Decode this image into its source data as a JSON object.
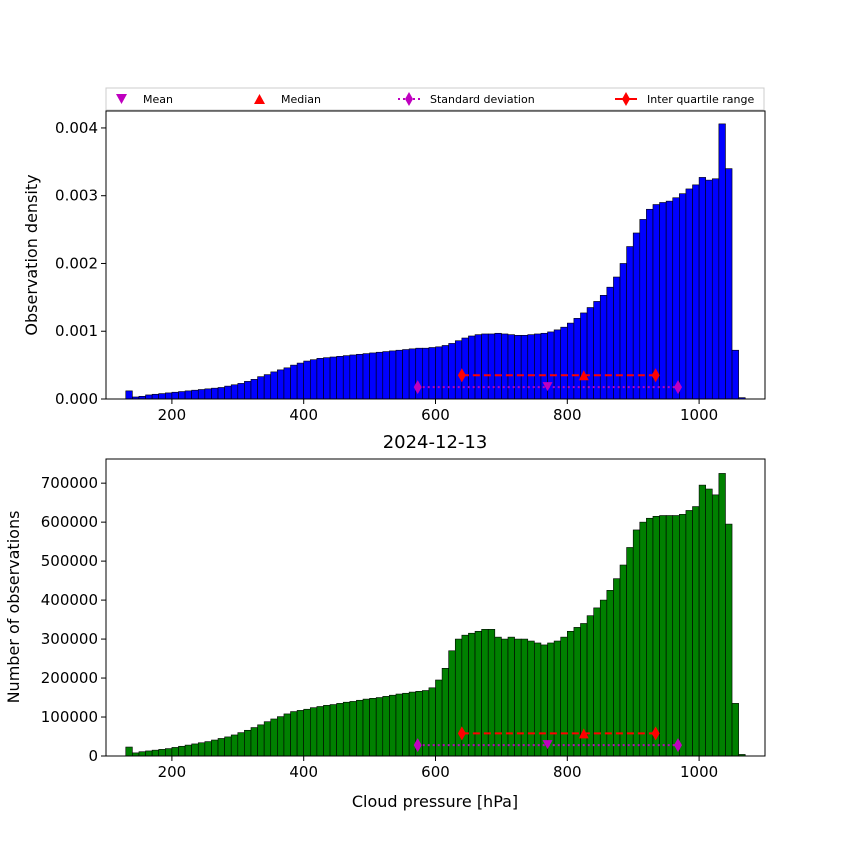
{
  "figure": {
    "title": "2024-12-13",
    "legend": {
      "placement": "top",
      "entries": [
        {
          "key": "mean",
          "label": "Mean",
          "marker": "triangle-down",
          "color": "#bf00bf"
        },
        {
          "key": "median",
          "label": "Median",
          "marker": "triangle-up",
          "color": "#ff0000"
        },
        {
          "key": "std",
          "label": "Standard deviation",
          "marker": "diamond",
          "line": "dotted",
          "color": "#bf00bf"
        },
        {
          "key": "iqr",
          "label": "Inter quartile range",
          "marker": "diamond",
          "line": "solid",
          "color": "#ff0000"
        }
      ]
    }
  },
  "chart_data": [
    {
      "type": "bar",
      "xlabel": "",
      "ylabel": "Observation density",
      "xlim": [
        100,
        1100
      ],
      "ylim": [
        0,
        0.00425
      ],
      "xticks": [
        200,
        400,
        600,
        800,
        1000
      ],
      "yticks": [
        0.0,
        0.001,
        0.002,
        0.003,
        0.004
      ],
      "ytick_labels": [
        "0.000",
        "0.001",
        "0.002",
        "0.003",
        "0.004"
      ],
      "bin_start": 130,
      "bin_width": 10,
      "color": "#0000ff",
      "values": [
        0.00012,
        3e-05,
        4e-05,
        6e-05,
        7e-05,
        8e-05,
        9e-05,
        0.0001,
        0.00011,
        0.00012,
        0.00013,
        0.00014,
        0.00015,
        0.00016,
        0.00017,
        0.00019,
        0.00021,
        0.00023,
        0.00026,
        0.00029,
        0.00033,
        0.00036,
        0.0004,
        0.00043,
        0.00046,
        0.0005,
        0.00053,
        0.00056,
        0.00058,
        0.0006,
        0.00061,
        0.00062,
        0.00063,
        0.00064,
        0.00065,
        0.00066,
        0.00067,
        0.00068,
        0.00069,
        0.0007,
        0.00071,
        0.00072,
        0.00073,
        0.00074,
        0.00075,
        0.00075,
        0.00076,
        0.00077,
        0.00079,
        0.00082,
        0.00086,
        0.0009,
        0.00093,
        0.00095,
        0.00096,
        0.00096,
        0.00097,
        0.00096,
        0.00095,
        0.00094,
        0.00094,
        0.00095,
        0.00096,
        0.00097,
        0.00099,
        0.00102,
        0.00106,
        0.00112,
        0.00119,
        0.00127,
        0.00135,
        0.00144,
        0.00153,
        0.00165,
        0.0018,
        0.002,
        0.00225,
        0.00245,
        0.00265,
        0.0028,
        0.00287,
        0.0029,
        0.00292,
        0.00297,
        0.00303,
        0.0031,
        0.00316,
        0.00327,
        0.00323,
        0.00325,
        0.00406,
        0.0034,
        0.00072,
        2e-05
      ],
      "stats": {
        "mean": 770,
        "median": 825,
        "std_range": [
          573,
          968
        ],
        "iqr_range": [
          640,
          934
        ],
        "std_y": 0.000175,
        "iqr_y": 0.00035
      }
    },
    {
      "type": "bar",
      "xlabel": "Cloud pressure [hPa]",
      "ylabel": "Number of observations",
      "xlim": [
        100,
        1100
      ],
      "ylim": [
        0,
        762000
      ],
      "xticks": [
        200,
        400,
        600,
        800,
        1000
      ],
      "yticks": [
        0,
        100000,
        200000,
        300000,
        400000,
        500000,
        600000,
        700000
      ],
      "ytick_labels": [
        "0",
        "100000",
        "200000",
        "300000",
        "400000",
        "500000",
        "600000",
        "700000"
      ],
      "bin_start": 130,
      "bin_width": 10,
      "color": "#008000",
      "values": [
        23000,
        8000,
        11000,
        13000,
        15000,
        17000,
        19000,
        22000,
        25000,
        28000,
        31000,
        34000,
        37000,
        41000,
        45000,
        49000,
        54000,
        60000,
        66000,
        73000,
        80000,
        88000,
        95000,
        101000,
        108000,
        114000,
        117000,
        120000,
        124000,
        127000,
        130000,
        132000,
        135000,
        138000,
        140000,
        143000,
        146000,
        148000,
        150000,
        153000,
        156000,
        159000,
        161000,
        164000,
        166000,
        168000,
        175000,
        195000,
        225000,
        270000,
        300000,
        310000,
        315000,
        320000,
        325000,
        325000,
        305000,
        300000,
        305000,
        300000,
        300000,
        295000,
        290000,
        285000,
        290000,
        295000,
        305000,
        320000,
        330000,
        340000,
        360000,
        380000,
        400000,
        425000,
        455000,
        490000,
        535000,
        580000,
        600000,
        610000,
        615000,
        617000,
        617000,
        617000,
        620000,
        630000,
        640000,
        695000,
        685000,
        670000,
        725000,
        595000,
        135000,
        4000
      ],
      "stats": {
        "mean": 770,
        "median": 825,
        "std_range": [
          573,
          968
        ],
        "iqr_range": [
          640,
          934
        ],
        "std_y": 28000,
        "iqr_y": 58000
      }
    }
  ]
}
